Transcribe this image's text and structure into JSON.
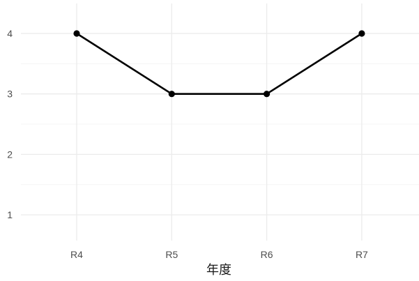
{
  "chart_data": {
    "type": "line",
    "title": "",
    "xlabel": "年度",
    "ylabel": "",
    "categories": [
      "R4",
      "R5",
      "R6",
      "R7"
    ],
    "series": [
      {
        "values": [
          4,
          3,
          3,
          4
        ]
      }
    ],
    "yticks": [
      1,
      2,
      3,
      4
    ],
    "ylim": [
      0.45,
      4.45
    ],
    "grid": true,
    "legend": "none",
    "colors": {
      "line": "#000000",
      "grid_major": "#ebebeb",
      "grid_minor": "#f5f5f5",
      "background": "#ffffff"
    }
  }
}
